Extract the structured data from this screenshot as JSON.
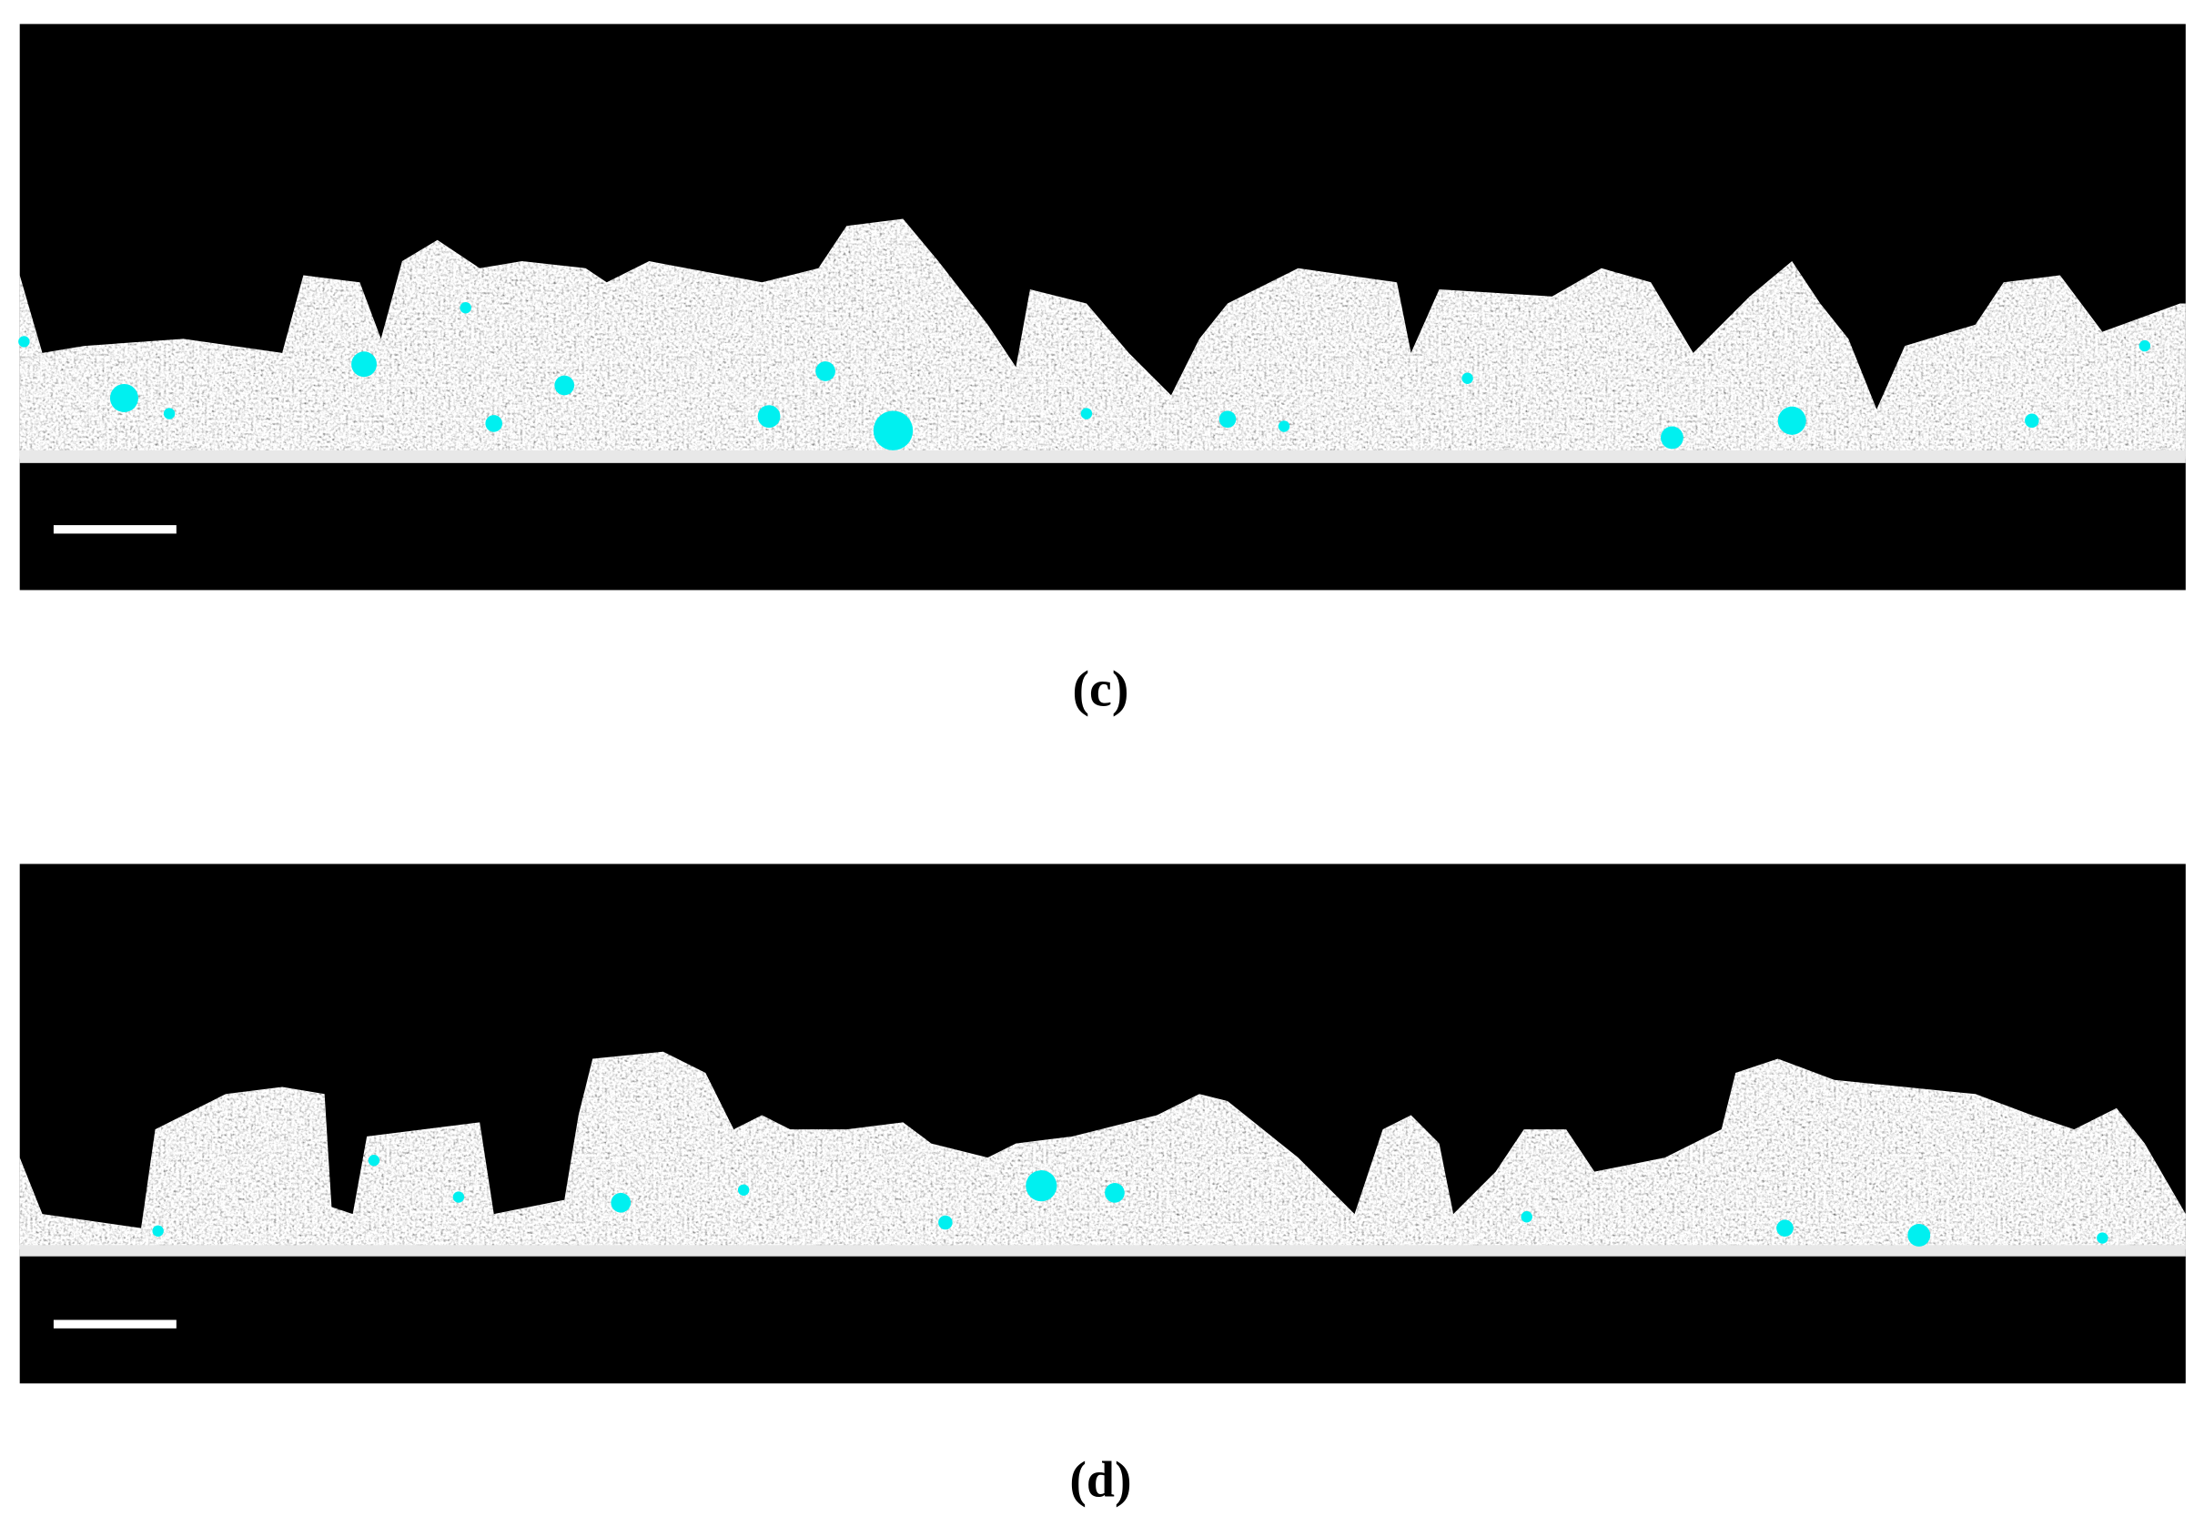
{
  "figure": {
    "panels": [
      {
        "label": "(c)"
      },
      {
        "label": "(d)"
      }
    ]
  }
}
